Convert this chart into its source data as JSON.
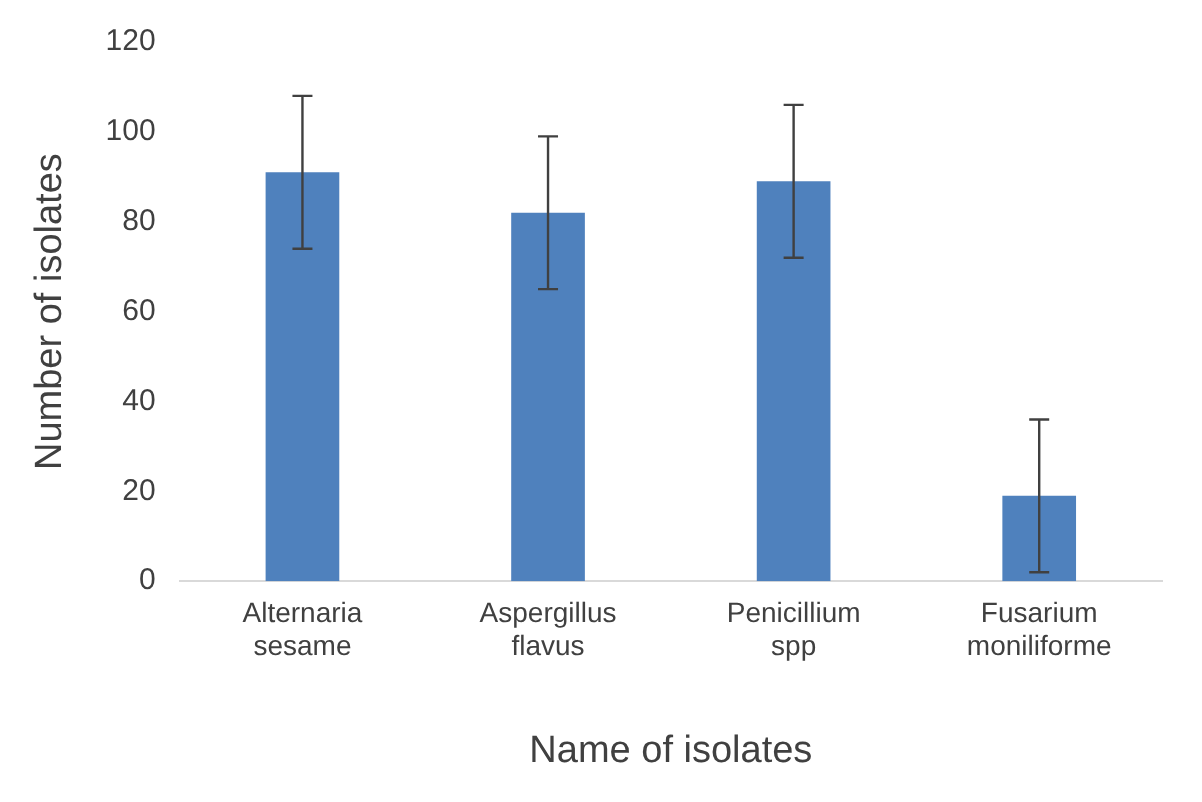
{
  "chart_data": {
    "type": "bar",
    "xlabel": "Name of isolates",
    "ylabel": "Number of isolates",
    "categories": [
      "Alternaria sesame",
      "Aspergillus flavus",
      "Penicillium spp",
      "Fusarium moniliforme"
    ],
    "values": [
      91,
      82,
      89,
      19
    ],
    "errors": [
      17,
      17,
      17,
      17
    ],
    "color": "#4f81bd",
    "ylim": [
      0,
      120
    ],
    "yticks": [
      0,
      20,
      40,
      60,
      80,
      100,
      120
    ],
    "grid": false,
    "legend": false
  }
}
